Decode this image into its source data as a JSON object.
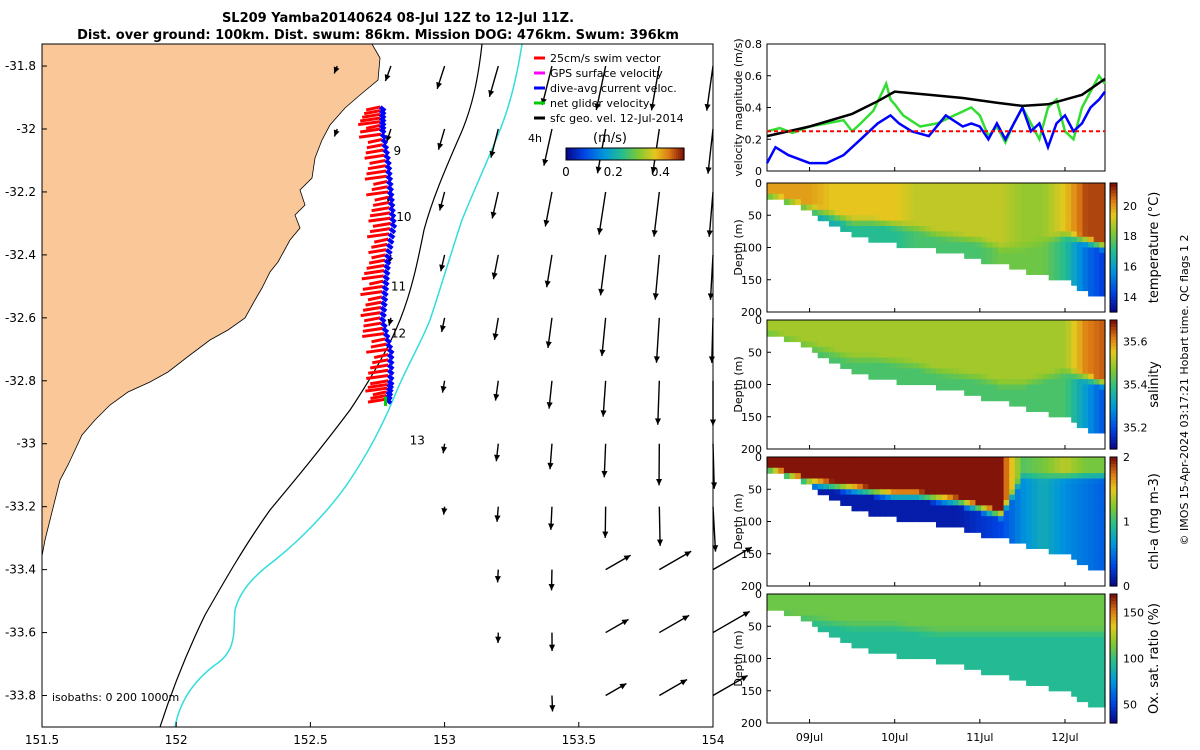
{
  "figure": {
    "title_line1": "SL209 Yamba20140624 08-Jul 12Z to 12-Jul 11Z.",
    "title_line2": "Dist. over ground: 100km. Dist. swum: 86km. Mission DOG: 476km. Swum: 396km",
    "credit": "© IMOS 15-Apr-2024 03:17:21 Hobart time. QC flags 1  2"
  },
  "map": {
    "x_ticks": [
      "151.5",
      "152",
      "152.5",
      "153",
      "153.5",
      "154"
    ],
    "y_ticks": [
      "-31.8",
      "-32",
      "-32.2",
      "-32.4",
      "-32.6",
      "-32.8",
      "-33",
      "-33.2",
      "-33.4",
      "-33.6",
      "-33.8"
    ],
    "x_range": [
      151.5,
      154.0
    ],
    "y_range": [
      -33.9,
      -31.73
    ],
    "legend": [
      {
        "label": "25cm/s swim vector",
        "color": "#ff0000"
      },
      {
        "label": "GPS surface velocity",
        "color": "#ff00ff"
      },
      {
        "label": "dive-avg current veloc.",
        "color": "#0000ff"
      },
      {
        "label": "net glider velocity",
        "color": "#00cc00"
      },
      {
        "label": "sfc geo. vel. 12-Jul-2014",
        "color": "#000000"
      }
    ],
    "speed_colorbar": {
      "label": "(m/s)",
      "ticks": [
        "0",
        "0.2",
        "0.4"
      ],
      "range": [
        0,
        0.5
      ]
    },
    "vector_time_label": "4h",
    "day_labels": [
      {
        "text": "9",
        "lon": 152.78,
        "lat": -32.07
      },
      {
        "text": "10",
        "lon": 152.79,
        "lat": -32.28
      },
      {
        "text": "11",
        "lon": 152.77,
        "lat": -32.5
      },
      {
        "text": "12",
        "lon": 152.77,
        "lat": -32.65
      },
      {
        "text": "13",
        "lon": 152.84,
        "lat": -32.99
      }
    ],
    "isobath_note": "isobaths: 0   200  1000m",
    "colors": {
      "land": "#fac898",
      "iso200": "#000000",
      "iso1000": "#33dddd"
    }
  },
  "chart_data": [
    {
      "type": "line",
      "ylabel": "velocity magnitude (m/s)",
      "ylim": [
        0,
        0.8
      ],
      "y_ticks": [
        "0",
        "0.2",
        "0.4",
        "0.6",
        "0.8"
      ],
      "x_ticks": [
        "09Jul",
        "10Jul",
        "11Jul",
        "12Jul"
      ],
      "xlim_days": [
        8.5,
        12.47
      ],
      "series": [
        {
          "name": "net glider velocity",
          "color": "#33dd33",
          "x": [
            8.5,
            8.65,
            8.8,
            9.0,
            9.2,
            9.4,
            9.5,
            9.6,
            9.75,
            9.9,
            9.95,
            10.0,
            10.1,
            10.3,
            10.5,
            10.7,
            10.9,
            11.0,
            11.1,
            11.2,
            11.3,
            11.4,
            11.5,
            11.6,
            11.7,
            11.8,
            11.9,
            12.0,
            12.1,
            12.2,
            12.3,
            12.4,
            12.47
          ],
          "y": [
            0.25,
            0.27,
            0.24,
            0.28,
            0.3,
            0.32,
            0.25,
            0.3,
            0.38,
            0.55,
            0.45,
            0.42,
            0.35,
            0.28,
            0.3,
            0.35,
            0.4,
            0.35,
            0.22,
            0.28,
            0.18,
            0.3,
            0.4,
            0.3,
            0.2,
            0.4,
            0.45,
            0.25,
            0.2,
            0.4,
            0.5,
            0.6,
            0.55
          ]
        },
        {
          "name": "dive-avg current veloc.",
          "color": "#0000ff",
          "x": [
            8.5,
            8.6,
            8.75,
            9.0,
            9.2,
            9.4,
            9.6,
            9.8,
            9.95,
            10.05,
            10.2,
            10.4,
            10.6,
            10.8,
            10.9,
            11.0,
            11.1,
            11.2,
            11.3,
            11.4,
            11.5,
            11.6,
            11.7,
            11.8,
            11.9,
            12.0,
            12.1,
            12.2,
            12.3,
            12.4,
            12.47
          ],
          "y": [
            0.05,
            0.15,
            0.1,
            0.05,
            0.05,
            0.1,
            0.2,
            0.3,
            0.35,
            0.3,
            0.25,
            0.22,
            0.35,
            0.28,
            0.3,
            0.28,
            0.2,
            0.3,
            0.2,
            0.3,
            0.4,
            0.25,
            0.3,
            0.15,
            0.3,
            0.35,
            0.25,
            0.3,
            0.4,
            0.45,
            0.5
          ]
        },
        {
          "name": "GPS surface velocity",
          "color": "#000000",
          "x": [
            8.5,
            9.0,
            9.5,
            9.8,
            10.0,
            10.4,
            10.8,
            11.2,
            11.5,
            11.8,
            12.0,
            12.2,
            12.47
          ],
          "y": [
            0.22,
            0.28,
            0.36,
            0.44,
            0.5,
            0.48,
            0.46,
            0.43,
            0.41,
            0.42,
            0.45,
            0.48,
            0.58
          ]
        },
        {
          "name": "25cm/s swim vector",
          "color": "#ff0000",
          "x": [
            8.5,
            12.47
          ],
          "y": [
            0.25,
            0.25
          ]
        }
      ]
    },
    {
      "type": "heatmap",
      "variable": "temperature",
      "cb_label": "temperature (°C)",
      "cb_ticks": [
        "14",
        "16",
        "18",
        "20"
      ],
      "cb_range": [
        13,
        21.5
      ],
      "ylabel": "Depth (m)",
      "y_ticks": [
        "0",
        "50",
        "100",
        "150",
        "200"
      ],
      "ylim": [
        0,
        200
      ],
      "x_days": [
        8.5,
        8.75,
        9.0,
        9.25,
        9.5,
        9.75,
        10.0,
        10.25,
        10.5,
        10.75,
        11.0,
        11.25,
        11.5,
        11.75,
        12.0,
        12.25,
        12.47
      ],
      "bottom_depth_m": [
        20,
        30,
        45,
        65,
        80,
        90,
        95,
        100,
        105,
        110,
        120,
        125,
        135,
        145,
        150,
        170,
        175
      ],
      "mixed_layer_m": [
        20,
        30,
        40,
        50,
        60,
        60,
        65,
        70,
        80,
        85,
        90,
        100,
        100,
        90,
        80,
        90,
        100
      ],
      "surface_value": [
        20,
        20,
        20,
        19.5,
        19.5,
        19.5,
        19.5,
        19,
        19,
        19,
        19,
        19,
        18.5,
        18.5,
        19.5,
        21,
        21
      ],
      "deep_value": [
        16,
        16,
        16.5,
        16.5,
        17,
        17,
        17,
        17.5,
        17.5,
        17.5,
        17.5,
        18,
        18,
        18,
        17,
        15,
        14
      ]
    },
    {
      "type": "heatmap",
      "variable": "salinity",
      "cb_label": "salinity",
      "cb_ticks": [
        "35.2",
        "35.4",
        "35.6"
      ],
      "cb_range": [
        35.1,
        35.7
      ],
      "ylabel": "Depth (m)",
      "y_ticks": [
        "0",
        "50",
        "100",
        "150",
        "200"
      ],
      "ylim": [
        0,
        200
      ],
      "x_days": [
        8.5,
        8.75,
        9.0,
        9.25,
        9.5,
        9.75,
        10.0,
        10.25,
        10.5,
        10.75,
        11.0,
        11.25,
        11.5,
        11.75,
        12.0,
        12.25,
        12.47
      ],
      "bottom_depth_m": [
        20,
        30,
        45,
        65,
        80,
        90,
        95,
        100,
        105,
        110,
        120,
        125,
        135,
        145,
        150,
        170,
        175
      ],
      "mixed_layer_m": [
        20,
        30,
        40,
        50,
        60,
        60,
        65,
        70,
        80,
        85,
        90,
        100,
        100,
        90,
        80,
        90,
        100
      ],
      "surface_value": [
        35.5,
        35.5,
        35.5,
        35.5,
        35.5,
        35.5,
        35.5,
        35.5,
        35.5,
        35.5,
        35.5,
        35.5,
        35.5,
        35.5,
        35.5,
        35.62,
        35.65
      ],
      "deep_value": [
        35.42,
        35.42,
        35.42,
        35.42,
        35.42,
        35.42,
        35.42,
        35.42,
        35.42,
        35.42,
        35.42,
        35.42,
        35.42,
        35.42,
        35.42,
        35.3,
        35.2
      ]
    },
    {
      "type": "heatmap",
      "variable": "chl-a",
      "cb_label": "chl-a (mg m-3)",
      "cb_ticks": [
        "0",
        "1",
        "2"
      ],
      "cb_range": [
        0,
        2
      ],
      "ylabel": "Depth (m)",
      "y_ticks": [
        "0",
        "50",
        "100",
        "150",
        "200"
      ],
      "ylim": [
        0,
        200
      ],
      "x_days": [
        8.5,
        8.75,
        9.0,
        9.25,
        9.5,
        9.75,
        10.0,
        10.25,
        10.5,
        10.75,
        11.0,
        11.25,
        11.5,
        11.75,
        12.0,
        12.25,
        12.47
      ],
      "bottom_depth_m": [
        20,
        30,
        45,
        65,
        80,
        90,
        95,
        100,
        105,
        110,
        120,
        125,
        135,
        145,
        150,
        170,
        175
      ],
      "mixed_layer_m": [
        20,
        30,
        40,
        45,
        50,
        55,
        60,
        60,
        65,
        70,
        80,
        90,
        30,
        30,
        30,
        30,
        30
      ],
      "surface_value": [
        2,
        2,
        2,
        2,
        2,
        2,
        2,
        2,
        2,
        2,
        2,
        2,
        1.1,
        1.2,
        1.4,
        1.2,
        1.2
      ],
      "deep_value": [
        0.1,
        0.1,
        0.1,
        0.1,
        0.1,
        0.1,
        0.1,
        0.1,
        0.1,
        0.1,
        0.2,
        0.3,
        0.6,
        0.8,
        0.6,
        0.5,
        0.4
      ]
    },
    {
      "type": "heatmap",
      "variable": "oxygen saturation",
      "cb_label": "Ox. sat. ratio (%)",
      "cb_ticks": [
        "50",
        "100",
        "150"
      ],
      "cb_range": [
        30,
        170
      ],
      "ylabel": "Depth (m)",
      "y_ticks": [
        "0",
        "50",
        "100",
        "150",
        "200"
      ],
      "ylim": [
        0,
        200
      ],
      "x_ticks": [
        "09Jul",
        "10Jul",
        "11Jul",
        "12Jul"
      ],
      "x_days": [
        8.5,
        8.75,
        9.0,
        9.25,
        9.5,
        9.75,
        10.0,
        10.25,
        10.5,
        10.75,
        11.0,
        11.25,
        11.5,
        11.75,
        12.0,
        12.25,
        12.47
      ],
      "bottom_depth_m": [
        20,
        30,
        45,
        65,
        80,
        90,
        95,
        100,
        105,
        110,
        120,
        125,
        135,
        145,
        150,
        170,
        175
      ],
      "mixed_layer_m": [
        30,
        35,
        40,
        45,
        50,
        50,
        50,
        55,
        60,
        60,
        60,
        60,
        60,
        60,
        60,
        60,
        60
      ],
      "surface_value": [
        112,
        112,
        112,
        112,
        112,
        112,
        112,
        112,
        112,
        112,
        112,
        112,
        112,
        112,
        112,
        112,
        112
      ],
      "deep_value": [
        95,
        95,
        95,
        95,
        95,
        95,
        95,
        95,
        95,
        95,
        95,
        95,
        95,
        95,
        95,
        95,
        95
      ]
    }
  ]
}
